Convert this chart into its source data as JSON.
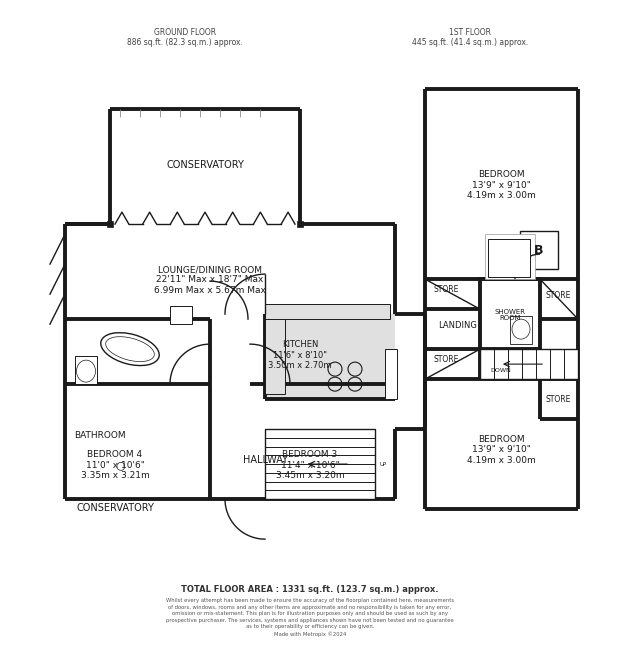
{
  "bg_color": "#ffffff",
  "wall_color": "#1a1a1a",
  "wall_lw": 2.8,
  "thin_lw": 1.0,
  "fill_gray": "#cccccc",
  "fill_light": "#e0e0e0",
  "header_ground": "GROUND FLOOR\n886 sq.ft. (82.3 sq.m.) approx.",
  "header_1st": "1ST FLOOR\n445 sq.ft. (41.4 sq.m.) approx.",
  "footer_main": "TOTAL FLOOR AREA : 1331 sq.ft. (123.7 sq.m.) approx.",
  "footer_small": "Whilst every attempt has been made to ensure the accuracy of the floorplan contained here, measurements\nof doors, windows, rooms and any other items are approximate and no responsibility is taken for any error,\nomission or mis-statement. This plan is for illustration purposes only and should be used as such by any\nprospective purchaser. The services, systems and appliances shown have not been tested and no guarantee\nas to their operability or efficiency can be given.\nMade with Metropix ©2024"
}
